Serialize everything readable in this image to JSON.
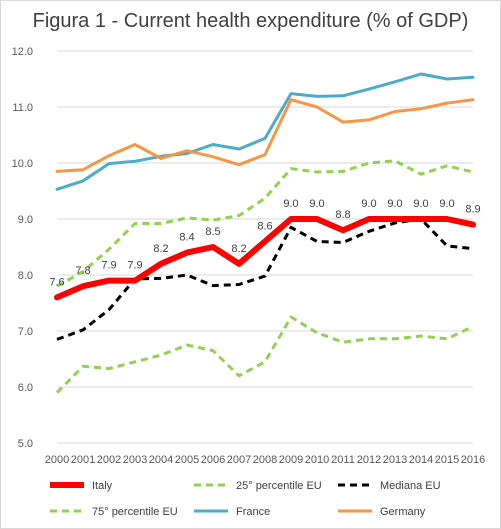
{
  "chart_data": {
    "type": "line",
    "title": "Figura 1 - Current health expenditure (% of GDP)",
    "xlabel": "",
    "ylabel": "",
    "x": [
      "2000",
      "2001",
      "2002",
      "2003",
      "2004",
      "2005",
      "2006",
      "2007",
      "2008",
      "2009",
      "2010",
      "2011",
      "2012",
      "2013",
      "2014",
      "2015",
      "2016"
    ],
    "ylim": [
      5.0,
      12.0
    ],
    "yticks": [
      "5.0",
      "6.0",
      "7.0",
      "8.0",
      "9.0",
      "10.0",
      "11.0",
      "12.0"
    ],
    "grid": true,
    "legend_position": "bottom",
    "series": [
      {
        "name": "Italy",
        "color": "#ff0000",
        "style": "solid-thick",
        "values": [
          7.6,
          7.8,
          7.9,
          7.9,
          8.2,
          8.4,
          8.5,
          8.2,
          8.6,
          9.0,
          9.0,
          8.8,
          9.0,
          9.0,
          9.0,
          9.0,
          8.9
        ],
        "labels": [
          "7.6",
          "7.8",
          "7.9",
          "7.9",
          "8.2",
          "8.4",
          "8.5",
          "8.2",
          "8.6",
          "9.0",
          "9.0",
          "8.8",
          "9.0",
          "9.0",
          "9.0",
          "9.0",
          "8.9"
        ]
      },
      {
        "name": "25° percentile EU",
        "color": "#92d050",
        "style": "dashed",
        "values": [
          5.9,
          6.37,
          6.33,
          6.45,
          6.57,
          6.75,
          6.65,
          6.2,
          6.45,
          7.25,
          6.97,
          6.8,
          6.86,
          6.86,
          6.91,
          6.86,
          7.08
        ]
      },
      {
        "name": "Mediana EU",
        "color": "#000000",
        "style": "dashed",
        "values": [
          6.85,
          7.02,
          7.38,
          7.93,
          7.94,
          8.0,
          7.81,
          7.83,
          7.98,
          8.85,
          8.6,
          8.58,
          8.78,
          8.93,
          9.0,
          8.52,
          8.47
        ]
      },
      {
        "name": "75° percentile EU",
        "color": "#92d050",
        "style": "dashed",
        "values": [
          7.8,
          8.06,
          8.46,
          8.92,
          8.92,
          9.02,
          8.98,
          9.06,
          9.37,
          9.9,
          9.84,
          9.85,
          10.0,
          10.04,
          9.8,
          9.95,
          9.84
        ]
      },
      {
        "name": "France",
        "color": "#4bacc6",
        "style": "solid",
        "values": [
          9.53,
          9.68,
          9.99,
          10.03,
          10.12,
          10.17,
          10.33,
          10.25,
          10.44,
          11.24,
          11.19,
          11.2,
          11.32,
          11.45,
          11.59,
          11.5,
          11.53
        ]
      },
      {
        "name": "Germany",
        "color": "#f79646",
        "style": "solid",
        "values": [
          9.85,
          9.88,
          10.13,
          10.33,
          10.08,
          10.22,
          10.11,
          9.97,
          10.15,
          11.13,
          11.0,
          10.73,
          10.77,
          10.92,
          10.97,
          11.07,
          11.13
        ]
      }
    ]
  }
}
